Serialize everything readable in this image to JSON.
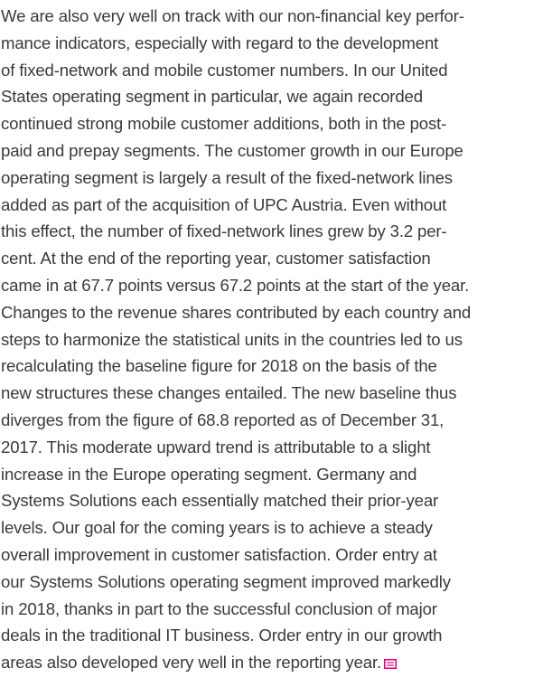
{
  "paragraph": {
    "lines": [
      "We are also very well on track with our non-financial key perfor-",
      "mance indicators, especially with regard to the development",
      "of fixed-network and mobile customer numbers. In our United",
      "States operating segment in particular, we again recorded",
      "continued strong mobile customer additions, both in the post-",
      "paid and prepay segments. The customer growth in our Europe",
      "operating segment is largely a result of the fixed-network lines",
      "added as part of the acquisition of UPC Austria. Even without",
      "this effect, the number of fixed-network lines grew by 3.2 per-",
      "cent. At the end of the reporting year, customer satisfaction",
      "came in at 67.7 points versus 67.2 points at the start of the year.",
      "Changes to the revenue shares contributed by each country and",
      "steps to harmonize the statistical units in the countries led to us",
      "recalculating the baseline figure for 2018 on the basis of the",
      "new structures these changes entailed. The new baseline thus",
      "diverges from the figure of 68.8 reported as of December 31,",
      "2017. This moderate upward trend is attributable to a slight",
      "increase in the Europe operating segment. Germany and",
      "Systems Solutions each essentially matched their prior-year",
      "levels. Our goal for the coming years is to achieve a steady",
      "overall improvement in customer satisfaction. Order entry at",
      "our Systems Solutions operating segment improved markedly",
      "in 2018, thanks in part to the successful conclusion of major",
      "deals in the traditional IT business. Order entry in our growth",
      "areas also developed very well in the reporting year."
    ]
  }
}
